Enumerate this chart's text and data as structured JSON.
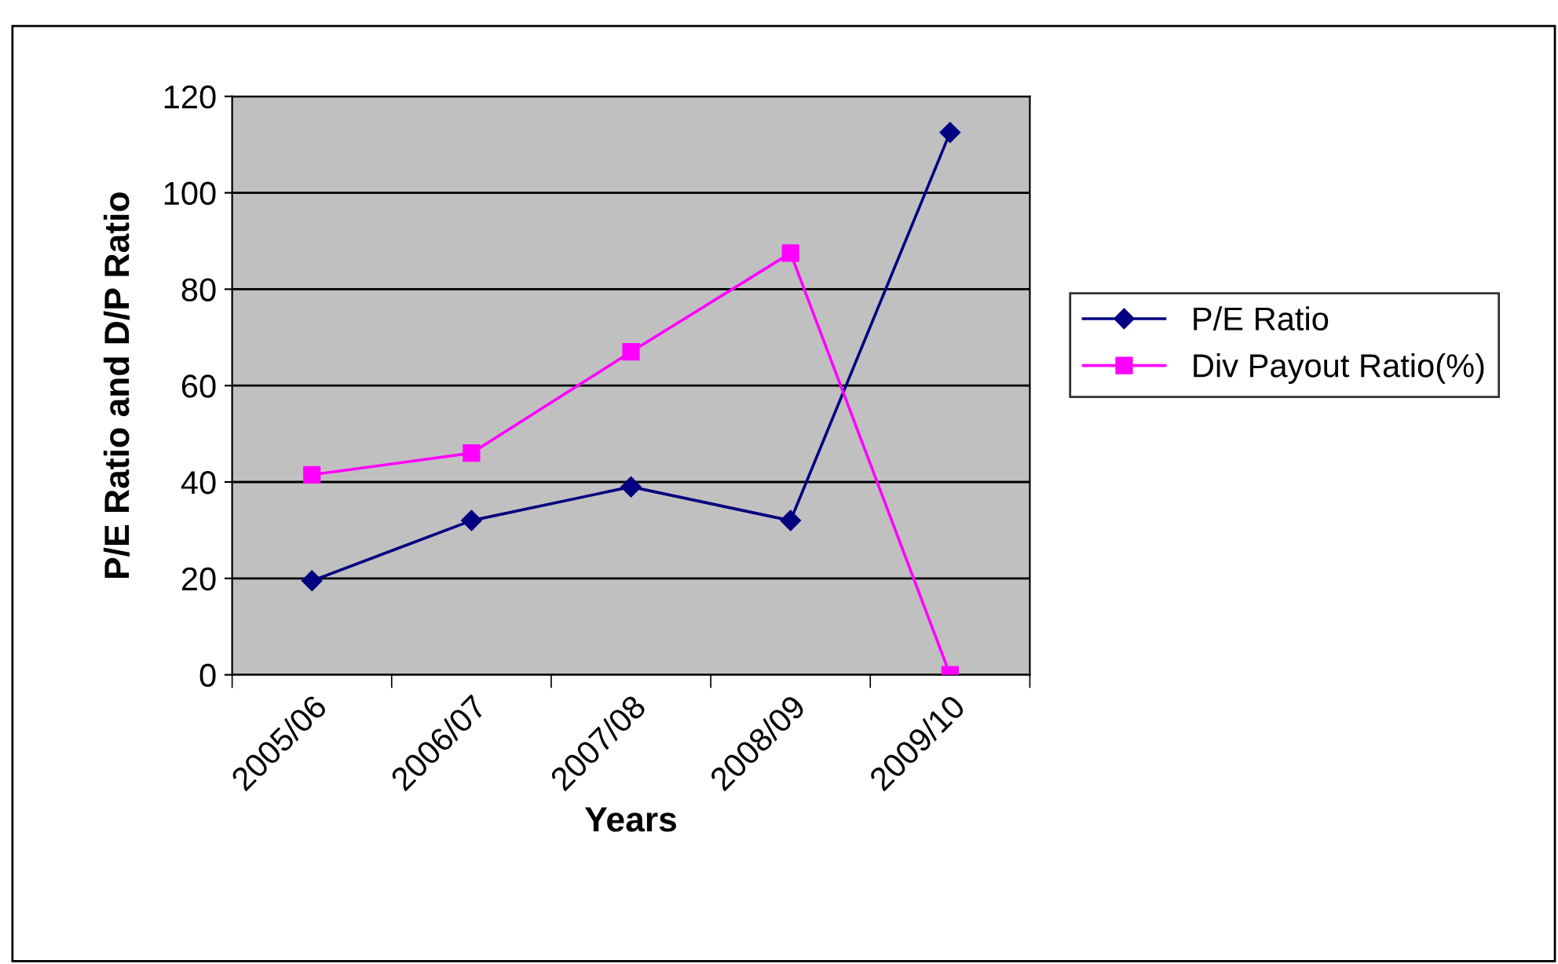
{
  "chart_data": {
    "type": "line",
    "xlabel": "Years",
    "ylabel": "P/E Ratio and D/P Ratio",
    "categories": [
      "2005/06",
      "2006/07",
      "2007/08",
      "2008/09",
      "2009/10"
    ],
    "series": [
      {
        "name": "P/E Ratio",
        "color": "#000080",
        "marker": "diamond",
        "values": [
          19.5,
          32,
          39,
          32,
          112.5
        ]
      },
      {
        "name": "Div Payout Ratio(%)",
        "color": "#ff00ff",
        "marker": "square",
        "values": [
          41.5,
          46,
          67,
          87.5,
          0
        ]
      }
    ],
    "ylim": [
      0,
      120
    ],
    "yticks": [
      0,
      20,
      40,
      60,
      80,
      100,
      120
    ],
    "grid": "y",
    "legend": "right",
    "line_style": "solid"
  }
}
